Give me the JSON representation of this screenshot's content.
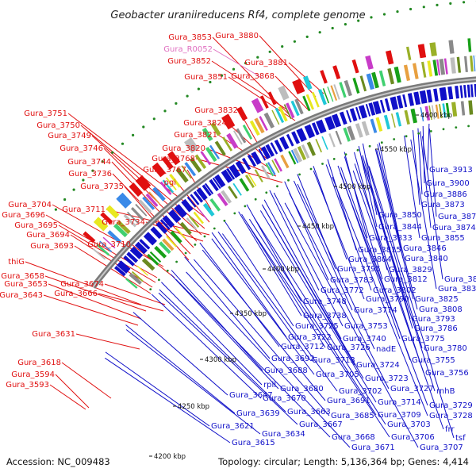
{
  "title": "Geobacter uraniireducens Rf4, complete genome",
  "footer": {
    "accession": "Accession: NC_009483",
    "topology": "Topology: circular; Length: 5,136,364 bp; Genes: 4,414"
  },
  "colors": {
    "left_label": "#e01010",
    "right_label": "#1010c8",
    "rna_label": "#e070c0",
    "backbone": "#7a7a7a",
    "forward_gene": "#e01010",
    "reverse_gene": "#1010c8",
    "dot": "#228822"
  },
  "ticks": [
    {
      "label": "4600 kbp"
    },
    {
      "label": "4550 kbp"
    },
    {
      "label": "4500 kbp"
    },
    {
      "label": "4450 kbp"
    },
    {
      "label": "4400 kbp"
    },
    {
      "label": "4350 kbp"
    },
    {
      "label": "4300 kbp"
    },
    {
      "label": "4250 kbp"
    },
    {
      "label": "4200 kbp"
    }
  ],
  "left_labels": [
    {
      "text": "Gura_3853",
      "kind": "gene"
    },
    {
      "text": "Gura_3880",
      "kind": "gene"
    },
    {
      "text": "Gura_R0052",
      "kind": "rna"
    },
    {
      "text": "Gura_3852",
      "kind": "gene"
    },
    {
      "text": "Gura_3881",
      "kind": "gene"
    },
    {
      "text": "Gura_3851",
      "kind": "gene"
    },
    {
      "text": "Gura_3868",
      "kind": "gene"
    },
    {
      "text": "Gura_3832",
      "kind": "gene"
    },
    {
      "text": "Gura_3751",
      "kind": "gene"
    },
    {
      "text": "Gura_3824",
      "kind": "gene"
    },
    {
      "text": "Gura_3750",
      "kind": "gene"
    },
    {
      "text": "Gura_3821",
      "kind": "gene"
    },
    {
      "text": "Gura_3749",
      "kind": "gene"
    },
    {
      "text": "Gura_3820",
      "kind": "gene"
    },
    {
      "text": "Gura_3746",
      "kind": "gene"
    },
    {
      "text": "Gura_3768",
      "kind": "gene"
    },
    {
      "text": "Gura_3744",
      "kind": "gene"
    },
    {
      "text": "Gura_3767",
      "kind": "gene"
    },
    {
      "text": "Gura_3736",
      "kind": "gene"
    },
    {
      "text": "pgi",
      "kind": "gene"
    },
    {
      "text": "Gura_3735",
      "kind": "gene"
    },
    {
      "text": "Gura_3704",
      "kind": "gene"
    },
    {
      "text": "Gura_3711",
      "kind": "gene"
    },
    {
      "text": "Gura_3696",
      "kind": "gene"
    },
    {
      "text": "Gura_3734",
      "kind": "gene"
    },
    {
      "text": "Gura_3695",
      "kind": "gene"
    },
    {
      "text": "Gura_3694",
      "kind": "gene"
    },
    {
      "text": "Gura_3710",
      "kind": "gene"
    },
    {
      "text": "Gura_3693",
      "kind": "gene"
    },
    {
      "text": "thiG",
      "kind": "gene"
    },
    {
      "text": "Gura_3658",
      "kind": "gene"
    },
    {
      "text": "Gura_3674",
      "kind": "gene"
    },
    {
      "text": "Gura_3653",
      "kind": "gene"
    },
    {
      "text": "Gura_3666",
      "kind": "gene"
    },
    {
      "text": "Gura_3643",
      "kind": "gene"
    },
    {
      "text": "Gura_3631",
      "kind": "gene"
    },
    {
      "text": "Gura_3618",
      "kind": "gene"
    },
    {
      "text": "Gura_3594",
      "kind": "gene"
    },
    {
      "text": "Gura_3593",
      "kind": "gene"
    }
  ],
  "right_labels": [
    {
      "text": "Gura_3913"
    },
    {
      "text": "Gura_3900"
    },
    {
      "text": "Gura_3886"
    },
    {
      "text": "Gura_3873"
    },
    {
      "text": "Gura_3879"
    },
    {
      "text": "Gura_3850"
    },
    {
      "text": "Gura_3874"
    },
    {
      "text": "Gura_3844"
    },
    {
      "text": "Gura_3855"
    },
    {
      "text": "Gura_3833"
    },
    {
      "text": "Gura_3815"
    },
    {
      "text": "Gura_3846"
    },
    {
      "text": "Gura_3804"
    },
    {
      "text": "Gura_3840"
    },
    {
      "text": "Gura_3795"
    },
    {
      "text": "Gura_3829"
    },
    {
      "text": "Gura_3783"
    },
    {
      "text": "Gura_3812"
    },
    {
      "text": "Gura_3843"
    },
    {
      "text": "Gura_3772"
    },
    {
      "text": "Gura_3802"
    },
    {
      "text": "Gura_3837"
    },
    {
      "text": "Gura_3748"
    },
    {
      "text": "Gura_3790"
    },
    {
      "text": "Gura_3825"
    },
    {
      "text": "Gura_3774"
    },
    {
      "text": "Gura_3808"
    },
    {
      "text": "Gura_3738"
    },
    {
      "text": "Gura_3793"
    },
    {
      "text": "Gura_3725"
    },
    {
      "text": "Gura_3753"
    },
    {
      "text": "Gura_3786"
    },
    {
      "text": "Gura_3722"
    },
    {
      "text": "Gura_3740"
    },
    {
      "text": "Gura_3775"
    },
    {
      "text": "Gura_3712"
    },
    {
      "text": "Gura_3726"
    },
    {
      "text": "nadE"
    },
    {
      "text": "Gura_3780"
    },
    {
      "text": "Gura_3692"
    },
    {
      "text": "Gura_3713"
    },
    {
      "text": "Gura_3755"
    },
    {
      "text": "Gura_3724"
    },
    {
      "text": "Gura_3688"
    },
    {
      "text": "Gura_3756"
    },
    {
      "text": "Gura_3705"
    },
    {
      "text": "Gura_3723"
    },
    {
      "text": "rplI"
    },
    {
      "text": "Gura_3727"
    },
    {
      "text": "rnhB"
    },
    {
      "text": "Gura_3680"
    },
    {
      "text": "Gura_3702"
    },
    {
      "text": "Gura_3647"
    },
    {
      "text": "Gura_3670"
    },
    {
      "text": "Gura_3691"
    },
    {
      "text": "Gura_3714"
    },
    {
      "text": "Gura_3729"
    },
    {
      "text": "Gura_3663"
    },
    {
      "text": "Gura_3709"
    },
    {
      "text": "Gura_3728"
    },
    {
      "text": "Gura_3639"
    },
    {
      "text": "Gura_3685"
    },
    {
      "text": "Gura_3667"
    },
    {
      "text": "Gura_3703"
    },
    {
      "text": "frr"
    },
    {
      "text": "Gura_3621"
    },
    {
      "text": "tsf"
    },
    {
      "text": "Gura_3634"
    },
    {
      "text": "Gura_3668"
    },
    {
      "text": "Gura_3706"
    },
    {
      "text": "Gura_3615"
    },
    {
      "text": "Gura_3671"
    },
    {
      "text": "Gura_3707"
    }
  ]
}
